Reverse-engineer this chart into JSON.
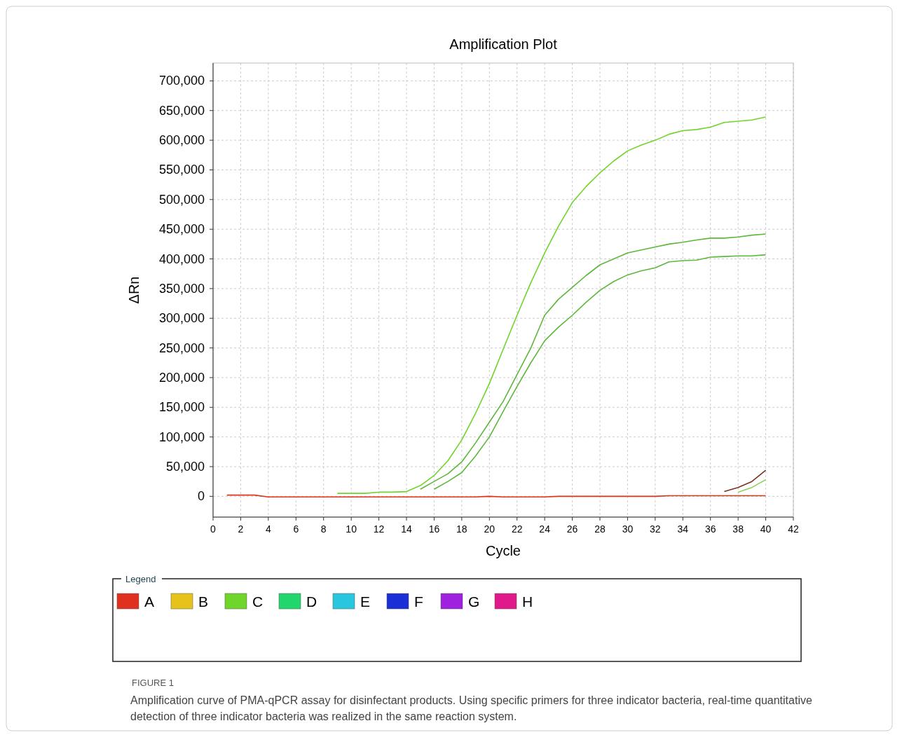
{
  "chart_data": {
    "type": "line",
    "title": "Amplification Plot",
    "xlabel": "Cycle",
    "ylabel": "ΔRn",
    "legend_title": "Legend",
    "legend": "bottom",
    "grid": true,
    "line_style": "solid",
    "marker": "none",
    "annotations": [
      "FIGURE 1",
      "Amplification curve of PMA-qPCR assay for disinfectant products. Using specific primers for three indicator bacteria, real-time quantitative detection of three indicator bacteria was realized in the same reaction system."
    ],
    "x": [
      1,
      2,
      3,
      4,
      5,
      6,
      7,
      8,
      9,
      10,
      11,
      12,
      13,
      14,
      15,
      16,
      17,
      18,
      19,
      20,
      21,
      22,
      23,
      24,
      25,
      26,
      27,
      28,
      29,
      30,
      31,
      32,
      33,
      34,
      35,
      36,
      37,
      38,
      39,
      40
    ],
    "xlim": [
      0,
      42
    ],
    "xticks": [
      0,
      2,
      4,
      6,
      8,
      10,
      12,
      14,
      16,
      18,
      20,
      22,
      24,
      26,
      28,
      30,
      32,
      34,
      36,
      38,
      40,
      42
    ],
    "ylim": [
      -35000,
      730000
    ],
    "yticks": [
      {
        "value": 0,
        "label": "0"
      },
      {
        "value": 50000,
        "label": "50,000"
      },
      {
        "value": 100000,
        "label": "100,000"
      },
      {
        "value": 150000,
        "label": "150,000"
      },
      {
        "value": 200000,
        "label": "200,000"
      },
      {
        "value": 250000,
        "label": "250,000"
      },
      {
        "value": 300000,
        "label": "300,000"
      },
      {
        "value": 350000,
        "label": "350,000"
      },
      {
        "value": 400000,
        "label": "400,000"
      },
      {
        "value": 450000,
        "label": "450,000"
      },
      {
        "value": 500000,
        "label": "500,000"
      },
      {
        "value": 550000,
        "label": "550,000"
      },
      {
        "value": 600000,
        "label": "600,000"
      },
      {
        "value": 650000,
        "label": "650,000"
      },
      {
        "value": 700000,
        "label": "700,000"
      }
    ],
    "series": [
      {
        "name": "A",
        "color": "#e0301e",
        "values": [
          2000,
          2000,
          2000,
          -1000,
          -1000,
          -1000,
          -1000,
          -1000,
          -1000,
          -1000,
          -1000,
          -1000,
          -1000,
          -1000,
          -1000,
          -1000,
          -1000,
          -1000,
          -1000,
          0,
          -1000,
          -1000,
          -1000,
          -1000,
          0,
          0,
          0,
          0,
          0,
          0,
          0,
          0,
          1000,
          1000,
          1000,
          1000,
          1000,
          1000,
          1000,
          1000
        ]
      },
      {
        "name": "B",
        "color": "#e6c21a",
        "values": [
          null,
          null,
          null,
          null,
          null,
          null,
          null,
          null,
          null,
          null,
          null,
          null,
          null,
          null,
          null,
          null,
          null,
          null,
          null,
          null,
          null,
          null,
          null,
          null,
          null,
          null,
          null,
          null,
          null,
          null,
          null,
          null,
          null,
          null,
          null,
          null,
          null,
          null,
          null,
          null
        ]
      },
      {
        "name": "C",
        "color": "#6fd52a",
        "values": [
          null,
          null,
          null,
          null,
          null,
          null,
          null,
          null,
          5000,
          5000,
          5000,
          7000,
          7000,
          8000,
          18000,
          35000,
          60000,
          95000,
          140000,
          190000,
          248000,
          305000,
          360000,
          410000,
          455000,
          495000,
          522000,
          545000,
          565000,
          582000,
          592000,
          600000,
          610000,
          616000,
          618000,
          622000,
          630000,
          632000,
          634000,
          639000
        ]
      },
      {
        "name": "D",
        "color": "#22d66e",
        "values": [
          null,
          null,
          null,
          null,
          null,
          null,
          null,
          null,
          null,
          null,
          null,
          null,
          null,
          null,
          null,
          null,
          null,
          null,
          null,
          null,
          null,
          null,
          null,
          null,
          null,
          null,
          null,
          null,
          null,
          null,
          null,
          null,
          null,
          null,
          null,
          null,
          null,
          null,
          null,
          null
        ]
      },
      {
        "name": "E",
        "color": "#29c6e0",
        "values": [
          null,
          null,
          null,
          null,
          null,
          null,
          null,
          null,
          null,
          null,
          null,
          null,
          null,
          null,
          null,
          null,
          null,
          null,
          null,
          null,
          null,
          null,
          null,
          null,
          null,
          null,
          null,
          null,
          null,
          null,
          null,
          null,
          null,
          null,
          null,
          null,
          null,
          null,
          null,
          null
        ]
      },
      {
        "name": "F",
        "color": "#1b2fd6",
        "values": [
          null,
          null,
          null,
          null,
          null,
          null,
          null,
          null,
          null,
          null,
          null,
          null,
          null,
          null,
          null,
          null,
          null,
          null,
          null,
          null,
          null,
          null,
          null,
          null,
          null,
          null,
          null,
          null,
          null,
          null,
          null,
          null,
          null,
          null,
          null,
          null,
          null,
          null,
          null,
          null
        ]
      },
      {
        "name": "G",
        "color": "#a020e0",
        "values": [
          null,
          null,
          null,
          null,
          null,
          null,
          null,
          null,
          null,
          null,
          null,
          null,
          null,
          null,
          null,
          null,
          null,
          null,
          null,
          null,
          null,
          null,
          null,
          null,
          null,
          null,
          null,
          null,
          null,
          null,
          null,
          null,
          null,
          null,
          null,
          null,
          null,
          null,
          null,
          null
        ]
      },
      {
        "name": "H",
        "color": "#e01a8a",
        "values": [
          null,
          null,
          null,
          null,
          null,
          null,
          null,
          null,
          null,
          null,
          null,
          null,
          null,
          null,
          null,
          null,
          null,
          null,
          null,
          null,
          null,
          null,
          null,
          null,
          null,
          null,
          null,
          null,
          null,
          null,
          null,
          null,
          null,
          null,
          null,
          null,
          null,
          null,
          null,
          null
        ]
      },
      {
        "color": "#5cb83a",
        "values": [
          null,
          null,
          null,
          null,
          null,
          null,
          null,
          null,
          null,
          null,
          null,
          null,
          null,
          null,
          12000,
          25000,
          38000,
          58000,
          90000,
          125000,
          160000,
          205000,
          250000,
          305000,
          332000,
          352000,
          372000,
          390000,
          400000,
          410000,
          415000,
          420000,
          425000,
          428000,
          432000,
          435000,
          435000,
          437000,
          440000,
          442000
        ]
      },
      {
        "color": "#5cb83a",
        "values": [
          null,
          null,
          null,
          null,
          null,
          null,
          null,
          null,
          null,
          null,
          null,
          null,
          null,
          null,
          null,
          12000,
          25000,
          40000,
          68000,
          100000,
          143000,
          185000,
          225000,
          262000,
          285000,
          305000,
          327000,
          347000,
          362000,
          373000,
          380000,
          385000,
          395000,
          397000,
          398000,
          403000,
          404000,
          405000,
          405000,
          407000
        ]
      },
      {
        "color": "#7a3322",
        "values": [
          null,
          null,
          null,
          null,
          null,
          null,
          null,
          null,
          null,
          null,
          null,
          null,
          null,
          null,
          null,
          null,
          null,
          null,
          null,
          null,
          null,
          null,
          null,
          null,
          null,
          null,
          null,
          null,
          null,
          null,
          null,
          null,
          null,
          null,
          null,
          null,
          8000,
          15000,
          25000,
          44000
        ]
      },
      {
        "color": "#8ccf5a",
        "values": [
          null,
          null,
          null,
          null,
          null,
          null,
          null,
          null,
          null,
          null,
          null,
          null,
          null,
          null,
          null,
          null,
          null,
          null,
          null,
          null,
          null,
          null,
          null,
          null,
          null,
          null,
          null,
          null,
          null,
          null,
          null,
          null,
          null,
          null,
          null,
          null,
          null,
          7000,
          15000,
          28000
        ]
      }
    ]
  }
}
